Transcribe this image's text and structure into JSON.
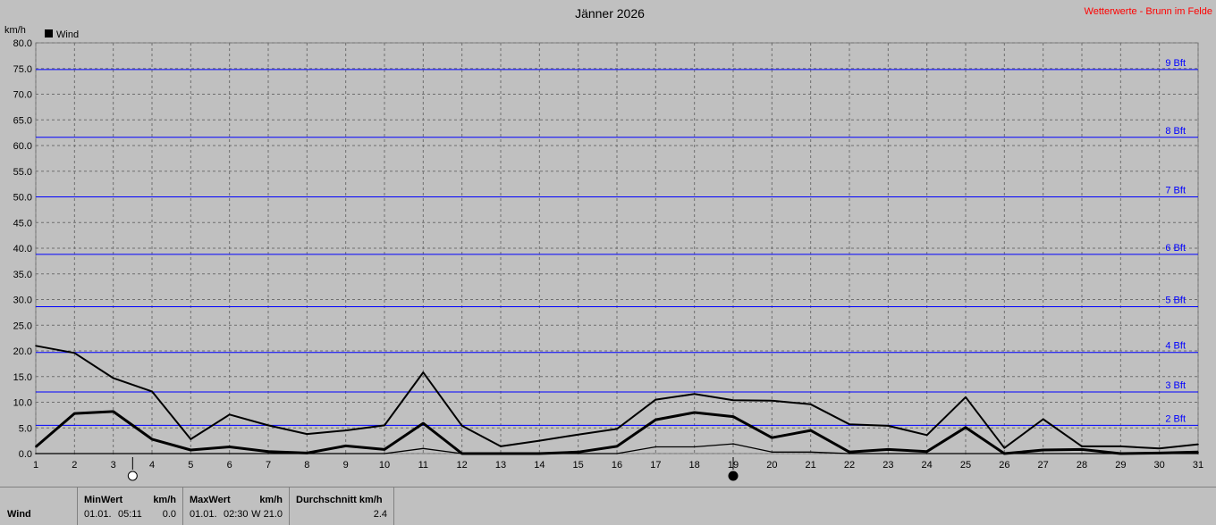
{
  "header": {
    "title": "Jänner 2026",
    "source_label": "Wetterwerte - Brunn im Felde"
  },
  "chart_data": {
    "type": "line",
    "title": "Jänner 2026",
    "ylabel": "km/h",
    "xlabel": "",
    "ylim": [
      0,
      80
    ],
    "y_ticks": [
      "0.0",
      "5.0",
      "10.0",
      "15.0",
      "20.0",
      "25.0",
      "30.0",
      "35.0",
      "40.0",
      "45.0",
      "50.0",
      "55.0",
      "60.0",
      "65.0",
      "70.0",
      "75.0",
      "80.0"
    ],
    "x": [
      1,
      2,
      3,
      4,
      5,
      6,
      7,
      8,
      9,
      10,
      11,
      12,
      13,
      14,
      15,
      16,
      17,
      18,
      19,
      20,
      21,
      22,
      23,
      24,
      25,
      26,
      27,
      28,
      29,
      30,
      31
    ],
    "legend": [
      {
        "name": "Wind",
        "color": "#000000",
        "position": "top-left"
      }
    ],
    "grid": true,
    "series": [
      {
        "name": "Wind",
        "role": "max",
        "stroke_width": 2,
        "values": [
          21.0,
          19.6,
          14.7,
          12.1,
          2.8,
          7.6,
          5.5,
          3.8,
          4.5,
          5.5,
          15.8,
          5.4,
          1.4,
          2.5,
          3.7,
          4.8,
          10.5,
          11.6,
          10.4,
          10.3,
          9.6,
          5.7,
          5.4,
          3.6,
          11.0,
          1.1,
          6.7,
          1.4,
          1.4,
          1.0,
          1.8
        ]
      },
      {
        "name": "Wind",
        "role": "avg",
        "stroke_width": 3,
        "values": [
          1.3,
          7.8,
          8.2,
          2.8,
          0.7,
          1.3,
          0.4,
          0.1,
          1.5,
          0.8,
          5.9,
          0.0,
          0.0,
          0.0,
          0.3,
          1.4,
          6.6,
          8.0,
          7.2,
          3.1,
          4.5,
          0.3,
          0.8,
          0.4,
          5.1,
          0.0,
          0.7,
          0.8,
          0.0,
          0.1,
          0.3
        ]
      },
      {
        "name": "Wind",
        "role": "min",
        "stroke_width": 1.3,
        "values": [
          0.0,
          0.0,
          0.0,
          0.0,
          0.0,
          0.0,
          0.0,
          0.0,
          0.0,
          0.0,
          1.0,
          0.0,
          0.0,
          0.0,
          0.0,
          0.0,
          1.3,
          1.3,
          1.9,
          0.3,
          0.3,
          0.0,
          0.0,
          0.0,
          0.0,
          0.0,
          0.0,
          0.0,
          0.0,
          0.0,
          0.0
        ]
      }
    ],
    "beaufort_lines": [
      {
        "label": "2 Bft",
        "value": 5.5
      },
      {
        "label": "3 Bft",
        "value": 12.0
      },
      {
        "label": "4 Bft",
        "value": 19.7
      },
      {
        "label": "5 Bft",
        "value": 28.6
      },
      {
        "label": "6 Bft",
        "value": 38.8
      },
      {
        "label": "7 Bft",
        "value": 50.0
      },
      {
        "label": "8 Bft",
        "value": 61.6
      },
      {
        "label": "9 Bft",
        "value": 74.8
      }
    ],
    "line_color": "#000000",
    "beaufort_color": "#0000ff",
    "moon_phases": [
      {
        "day": 3.5,
        "phase": "full-moon"
      },
      {
        "day": 19,
        "phase": "new-moon"
      }
    ]
  },
  "stats": {
    "row_label": "Wind",
    "min": {
      "header": "MinWert",
      "unit": "km/h",
      "date": "01.01.",
      "time": "05:11",
      "value": "0.0"
    },
    "max": {
      "header": "MaxWert",
      "unit": "km/h",
      "date": "01.01.",
      "time": "02:30",
      "value": "W 21.0"
    },
    "avg": {
      "header": "Durchschnitt km/h",
      "value": "2.4"
    }
  }
}
